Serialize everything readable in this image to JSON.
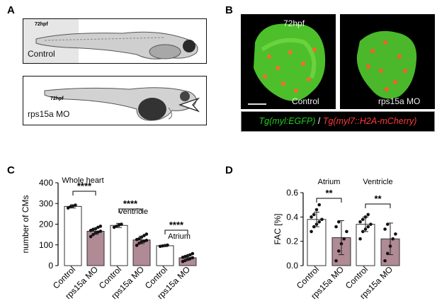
{
  "panels": {
    "A": "A",
    "B": "B",
    "C": "C",
    "D": "D"
  },
  "panelA": {
    "top": {
      "hpf": "72hpf",
      "label": "Control"
    },
    "bottom": {
      "hpf": "72hpf",
      "label": "rps15a MO"
    }
  },
  "panelB": {
    "left": {
      "hpf": "72hpf",
      "label": "Control"
    },
    "right": {
      "label": "rps15a MO"
    },
    "legend": {
      "green": "Tg(myl:EGFP)",
      "sep": " / ",
      "red": "Tg(myl7::H2A-mCherry)"
    }
  },
  "colors": {
    "control_bar": "#ffffff",
    "mo_bar": "#b08a95",
    "green": "#22cc22",
    "red": "#ff3a3a"
  },
  "chart_data": [
    {
      "panel": "C",
      "type": "bar",
      "ylabel": "number of CMs",
      "ylim": [
        0,
        400
      ],
      "yticks": [
        0,
        100,
        200,
        300,
        400
      ],
      "categories": [
        "Control",
        "rps15a MO",
        "Control",
        "rps15a MO",
        "Control",
        "rps15a MO"
      ],
      "groups": [
        {
          "label": "Whole heart",
          "sig": "****"
        },
        {
          "label": "Ventricle",
          "sig": "****"
        },
        {
          "label": "Atrium",
          "sig": "****"
        }
      ],
      "values": [
        286,
        166,
        194,
        124,
        96,
        38
      ],
      "errors": [
        8,
        15,
        10,
        18,
        4,
        12
      ],
      "points": [
        [
          278,
          284,
          288,
          292
        ],
        [
          140,
          150,
          158,
          162,
          166,
          170,
          175,
          178,
          185,
          190
        ],
        [
          185,
          190,
          196,
          200
        ],
        [
          98,
          108,
          115,
          118,
          122,
          126,
          130,
          138,
          145,
          152
        ],
        [
          93,
          95,
          97,
          99
        ],
        [
          20,
          25,
          30,
          34,
          38,
          40,
          44,
          48,
          52,
          58
        ]
      ]
    },
    {
      "panel": "D",
      "type": "bar",
      "ylabel": "FAC [%]",
      "ylim": [
        0,
        0.6
      ],
      "yticks": [
        "0.0",
        "0.2",
        "0.4",
        "0.6"
      ],
      "categories": [
        "Control",
        "rps15a MO",
        "Control",
        "rps15a MO"
      ],
      "groups": [
        {
          "label": "Atrium",
          "sig": "**"
        },
        {
          "label": "Ventricle",
          "sig": "**"
        }
      ],
      "values": [
        0.38,
        0.23,
        0.34,
        0.22
      ],
      "errors": [
        0.06,
        0.14,
        0.06,
        0.13
      ],
      "points": [
        [
          0.28,
          0.32,
          0.34,
          0.36,
          0.38,
          0.4,
          0.42,
          0.46,
          0.5
        ],
        [
          0.04,
          0.12,
          0.18,
          0.22,
          0.28,
          0.32,
          0.36
        ],
        [
          0.22,
          0.28,
          0.3,
          0.32,
          0.34,
          0.36,
          0.38,
          0.4,
          0.42
        ],
        [
          0.04,
          0.1,
          0.16,
          0.22,
          0.26,
          0.3,
          0.34
        ]
      ]
    }
  ]
}
